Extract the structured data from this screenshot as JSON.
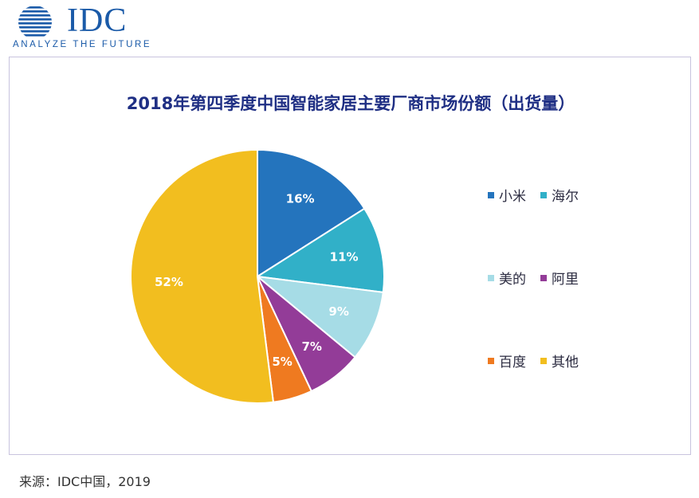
{
  "logo": {
    "name": "IDC",
    "tagline": "ANALYZE THE FUTURE",
    "color": "#1a5aa8"
  },
  "chart_data": {
    "type": "pie",
    "title": "2018年第四季度中国智能家居主要厂商市场份额（出货量）",
    "unit": "%",
    "start_angle_deg": 0,
    "direction": "clockwise",
    "slices": [
      {
        "name": "小米",
        "value": 16,
        "label": "16%",
        "color": "#2474bd",
        "label_color": "#ffffff"
      },
      {
        "name": "海尔",
        "value": 11,
        "label": "11%",
        "color": "#31b0c8",
        "label_color": "#ffffff"
      },
      {
        "name": "美的",
        "value": 9,
        "label": "9%",
        "color": "#a6dce6",
        "label_color": "#ffffff"
      },
      {
        "name": "阿里",
        "value": 7,
        "label": "7%",
        "color": "#933c98",
        "label_color": "#ffffff"
      },
      {
        "name": "百度",
        "value": 5,
        "label": "5%",
        "color": "#ef7a20",
        "label_color": "#ffffff"
      },
      {
        "name": "其他",
        "value": 52,
        "label": "52%",
        "color": "#f2be1f",
        "label_color": "#ffffff"
      }
    ],
    "legend": {
      "placement": "right",
      "columns": 2
    }
  },
  "source": "来源：IDC中国，2019"
}
